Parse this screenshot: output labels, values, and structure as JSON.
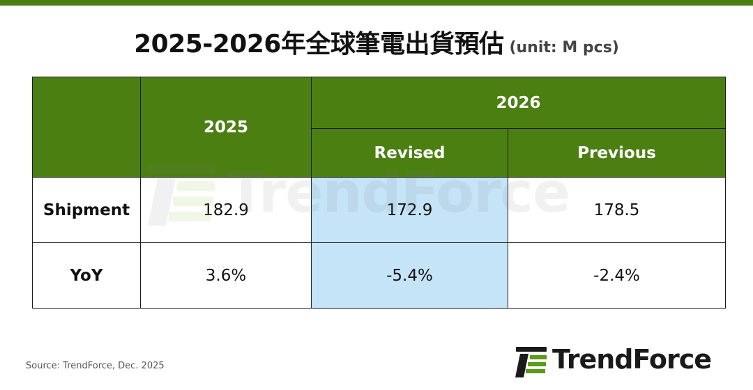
{
  "header": {
    "title": "2025-2026年全球筆電出貨預估",
    "unit": "(unit: M pcs)"
  },
  "chart_data": {
    "type": "table",
    "columns": {
      "year_2025": "2025",
      "year_2026": "2026",
      "revised": "Revised",
      "previous": "Previous"
    },
    "rows": [
      {
        "label": "Shipment",
        "y2025": "182.9",
        "revised": "172.9",
        "previous": "178.5"
      },
      {
        "label": "YoY",
        "y2025": "3.6%",
        "revised": "-5.4%",
        "previous": "-2.4%"
      }
    ],
    "highlight_color": "#c5e4f8",
    "header_color": "#4c7f12"
  },
  "footer": {
    "source": "Source: TrendForce, Dec. 2025",
    "logo_text": "TrendForce",
    "watermark_text": "TrendForce"
  },
  "colors": {
    "brand_green": "#4c7f12",
    "highlight_blue": "#c5e4f8"
  }
}
